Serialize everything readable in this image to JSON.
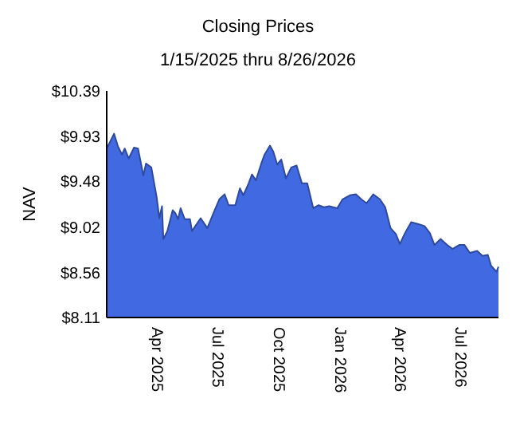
{
  "chart_data": {
    "type": "area",
    "title": "Closing Prices",
    "subtitle": "1/15/2025 thru 8/26/2026",
    "ylabel": "NAV",
    "x": [
      "2025-01-15",
      "2025-01-21",
      "2025-01-26",
      "2025-02-01",
      "2025-02-07",
      "2025-02-11",
      "2025-02-17",
      "2025-02-25",
      "2025-03-03",
      "2025-03-11",
      "2025-03-15",
      "2025-03-23",
      "2025-03-31",
      "2025-04-04",
      "2025-04-08",
      "2025-04-10",
      "2025-04-16",
      "2025-04-24",
      "2025-04-28",
      "2025-05-02",
      "2025-05-06",
      "2025-05-12",
      "2025-05-20",
      "2025-05-23",
      "2025-06-05",
      "2025-06-15",
      "2025-06-23",
      "2025-07-03",
      "2025-07-11",
      "2025-07-17",
      "2025-07-27",
      "2025-08-03",
      "2025-08-08",
      "2025-08-16",
      "2025-08-21",
      "2025-08-27",
      "2025-09-04",
      "2025-09-09",
      "2025-09-17",
      "2025-09-22",
      "2025-09-28",
      "2025-10-04",
      "2025-10-11",
      "2025-10-19",
      "2025-10-27",
      "2025-11-04",
      "2025-11-12",
      "2025-11-21",
      "2025-11-29",
      "2025-12-07",
      "2025-12-15",
      "2025-12-27",
      "2026-01-04",
      "2026-01-15",
      "2026-01-24",
      "2026-02-01",
      "2026-02-09",
      "2026-02-19",
      "2026-03-01",
      "2026-03-09",
      "2026-03-17",
      "2026-03-25",
      "2026-03-31",
      "2026-04-07",
      "2026-04-17",
      "2026-04-28",
      "2026-05-07",
      "2026-05-15",
      "2026-05-22",
      "2026-05-31",
      "2026-06-10",
      "2026-06-18",
      "2026-06-28",
      "2026-07-06",
      "2026-07-14",
      "2026-07-25",
      "2026-08-02",
      "2026-08-10",
      "2026-08-15",
      "2026-08-23",
      "2026-08-26"
    ],
    "series": [
      {
        "color": "#4169e1",
        "values": [
          9.81,
          9.89,
          9.96,
          9.83,
          9.75,
          9.81,
          9.71,
          9.82,
          9.81,
          9.54,
          9.66,
          9.62,
          9.32,
          9.11,
          9.23,
          8.9,
          8.98,
          9.19,
          9.16,
          9.1,
          9.21,
          9.1,
          9.1,
          8.98,
          9.11,
          9.01,
          9.14,
          9.3,
          9.35,
          9.24,
          9.24,
          9.41,
          9.34,
          9.46,
          9.55,
          9.49,
          9.66,
          9.75,
          9.84,
          9.78,
          9.65,
          9.7,
          9.51,
          9.62,
          9.64,
          9.46,
          9.46,
          9.21,
          9.24,
          9.22,
          9.23,
          9.21,
          9.3,
          9.34,
          9.35,
          9.3,
          9.26,
          9.35,
          9.3,
          9.22,
          9.01,
          8.95,
          8.85,
          8.95,
          9.07,
          9.05,
          9.03,
          8.96,
          8.84,
          8.9,
          8.84,
          8.8,
          8.84,
          8.84,
          8.76,
          8.78,
          8.73,
          8.74,
          8.63,
          8.57,
          8.62
        ]
      }
    ],
    "xlim": [
      "2025-01-15",
      "2026-08-26"
    ],
    "xticks": [
      {
        "value": "2025-04-01",
        "label": "Apr 2025"
      },
      {
        "value": "2025-07-01",
        "label": "Jul 2025"
      },
      {
        "value": "2025-10-01",
        "label": "Oct 2025"
      },
      {
        "value": "2026-01-01",
        "label": "Jan 2026"
      },
      {
        "value": "2026-04-01",
        "label": "Apr 2026"
      },
      {
        "value": "2026-07-01",
        "label": "Jul 2026"
      }
    ],
    "ylim": [
      8.11,
      10.39
    ],
    "yticks": [
      {
        "value": 8.11,
        "label": "$8.11"
      },
      {
        "value": 8.56,
        "label": "$8.56"
      },
      {
        "value": 9.02,
        "label": "$9.02"
      },
      {
        "value": 9.48,
        "label": "$9.48"
      },
      {
        "value": 9.93,
        "label": "$9.93"
      },
      {
        "value": 10.39,
        "label": "$10.39"
      }
    ],
    "grid": false
  }
}
